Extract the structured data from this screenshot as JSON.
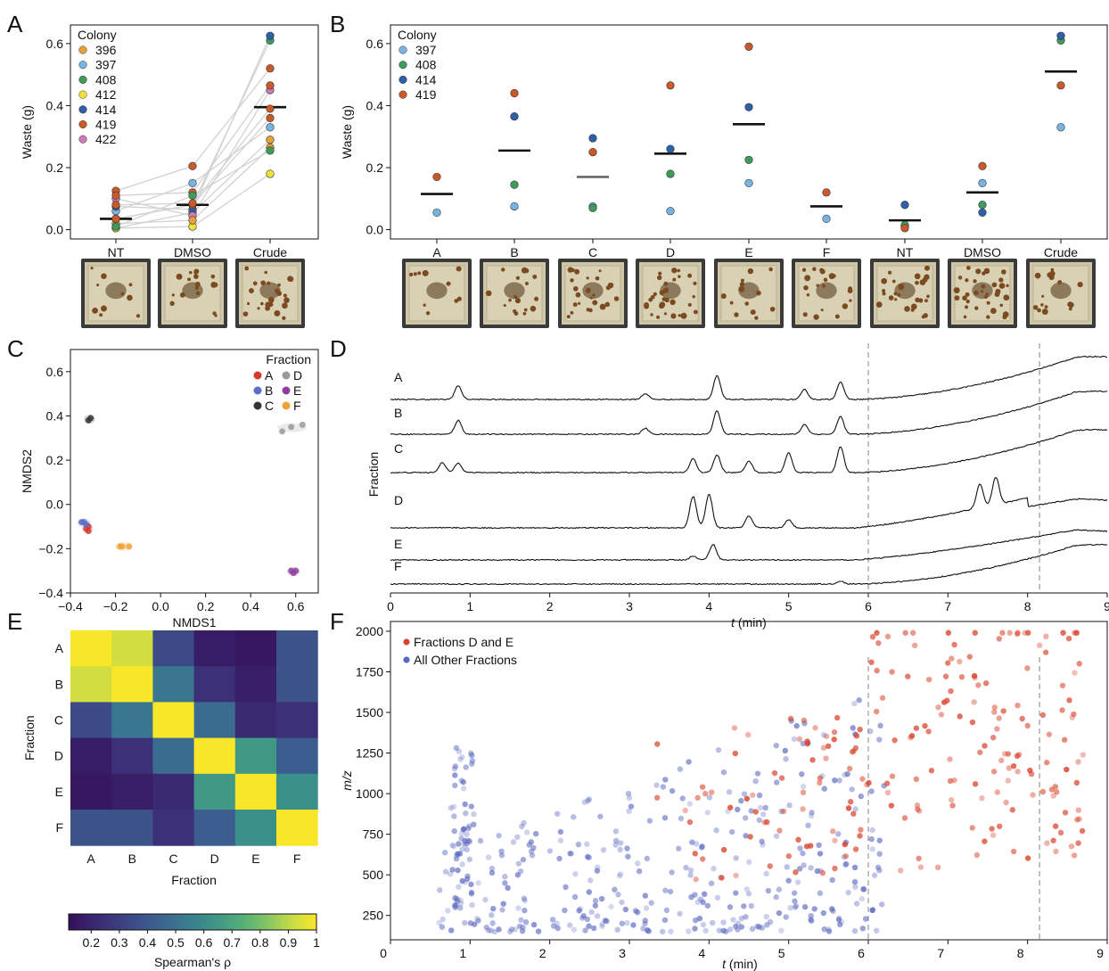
{
  "panels": {
    "A": "A",
    "B": "B",
    "C": "C",
    "D": "D",
    "E": "E",
    "F": "F"
  },
  "colony_colors": {
    "396": "#e8a13a",
    "397": "#78b4e2",
    "408": "#3f9b5b",
    "412": "#f0e03a",
    "414": "#2f5fa8",
    "419": "#c8592a",
    "422": "#cf7ab8"
  },
  "fraction_colors": {
    "A": "#d63a2f",
    "B": "#5a6fc4",
    "C": "#333333",
    "D": "#9a9a9a",
    "E": "#8e3f9e",
    "F": "#f0a23a"
  },
  "chart_data": [
    {
      "panel": "A",
      "type": "scatter",
      "ylabel": "Waste (g)",
      "ylim": [
        -0.03,
        0.66
      ],
      "yticks": [
        "0.0",
        "0.2",
        "0.4",
        "0.6"
      ],
      "categories": [
        "NT",
        "DMSO",
        "Crude"
      ],
      "legend_title": "Colony",
      "legend": [
        "396",
        "397",
        "408",
        "412",
        "414",
        "419",
        "422"
      ],
      "legend_placement": "top-left",
      "means": [
        0.035,
        0.08,
        0.395
      ],
      "points": [
        {
          "colony": "396",
          "values": [
            0.005,
            0.055,
            0.29
          ]
        },
        {
          "colony": "397",
          "values": [
            0.06,
            0.15,
            0.33
          ]
        },
        {
          "colony": "408",
          "values": [
            0.035,
            0.08,
            0.61
          ]
        },
        {
          "colony": "412",
          "values": [
            0.005,
            0.01,
            0.18
          ]
        },
        {
          "colony": "414",
          "values": [
            0.075,
            0.065,
            0.625
          ]
        },
        {
          "colony": "419",
          "values": [
            0.125,
            0.205,
            0.52
          ]
        },
        {
          "colony": "422",
          "values": [
            0.1,
            0.045,
            0.45
          ]
        },
        {
          "colony": "419",
          "values": [
            0.11,
            0.12,
            0.465
          ]
        },
        {
          "colony": "396",
          "values": [
            0.02,
            0.03,
            0.265
          ]
        },
        {
          "colony": "408",
          "values": [
            0.01,
            0.11,
            0.255
          ]
        },
        {
          "colony": "419",
          "values": [
            0.035,
            0.08,
            0.36
          ]
        },
        {
          "colony": "419",
          "values": [
            0.08,
            0.085,
            0.39
          ]
        }
      ]
    },
    {
      "panel": "B",
      "type": "scatter",
      "ylabel": "Waste (g)",
      "ylim": [
        -0.03,
        0.66
      ],
      "yticks": [
        "0.0",
        "0.2",
        "0.4",
        "0.6"
      ],
      "categories": [
        "A",
        "B",
        "C",
        "D",
        "E",
        "F",
        "NT",
        "DMSO",
        "Crude"
      ],
      "legend_title": "Colony",
      "legend": [
        "397",
        "408",
        "414",
        "419"
      ],
      "legend_placement": "top-left",
      "means": [
        0.115,
        0.255,
        0.17,
        0.245,
        0.34,
        0.075,
        0.03,
        0.12,
        0.51
      ],
      "points": [
        {
          "colony": "397",
          "values": [
            0.055,
            0.075,
            0.075,
            0.06,
            0.15,
            0.035,
            0.01,
            0.15,
            0.33
          ]
        },
        {
          "colony": "408",
          "values": [
            null,
            0.145,
            0.07,
            0.18,
            0.225,
            null,
            0.015,
            0.08,
            0.61
          ]
        },
        {
          "colony": "414",
          "values": [
            null,
            0.365,
            0.295,
            0.26,
            0.395,
            null,
            0.08,
            0.055,
            0.625
          ]
        },
        {
          "colony": "419",
          "values": [
            0.17,
            0.44,
            0.25,
            0.465,
            0.59,
            0.12,
            0.005,
            0.205,
            0.465
          ]
        }
      ]
    },
    {
      "panel": "C",
      "type": "scatter",
      "xlabel": "NMDS1",
      "ylabel": "NMDS2",
      "xlim": [
        -0.4,
        0.7
      ],
      "ylim": [
        -0.4,
        0.7
      ],
      "xticks": [
        "−0.4",
        "−0.2",
        "0.0",
        "0.2",
        "0.4",
        "0.6"
      ],
      "yticks": [
        "−0.4",
        "−0.2",
        "0.0",
        "0.2",
        "0.4",
        "0.6"
      ],
      "legend_title": "Fraction",
      "legend": [
        "A",
        "B",
        "C",
        "D",
        "E",
        "F"
      ],
      "legend_placement": "top-right",
      "series": [
        {
          "name": "A",
          "x": [
            -0.32,
            -0.33,
            -0.32
          ],
          "y": [
            -0.1,
            -0.11,
            -0.12
          ]
        },
        {
          "name": "B",
          "x": [
            -0.35,
            -0.34,
            -0.33
          ],
          "y": [
            -0.08,
            -0.08,
            -0.09
          ]
        },
        {
          "name": "C",
          "x": [
            -0.31,
            -0.32
          ],
          "y": [
            0.39,
            0.38
          ]
        },
        {
          "name": "D",
          "x": [
            0.54,
            0.58,
            0.63
          ],
          "y": [
            0.33,
            0.35,
            0.36
          ]
        },
        {
          "name": "E",
          "x": [
            0.58,
            0.59,
            0.6
          ],
          "y": [
            -0.3,
            -0.31,
            -0.3
          ]
        },
        {
          "name": "F",
          "x": [
            -0.18,
            -0.17,
            -0.14
          ],
          "y": [
            -0.19,
            -0.19,
            -0.19
          ]
        }
      ]
    },
    {
      "panel": "D",
      "type": "line",
      "xlabel": "t (min)",
      "ylabel": "Fraction",
      "xlim": [
        0,
        9
      ],
      "xticks": [
        "0",
        "1",
        "2",
        "3",
        "4",
        "5",
        "6",
        "7",
        "8",
        "9"
      ],
      "vlines": [
        6,
        8.15
      ],
      "trace_labels": [
        "A",
        "B",
        "C",
        "D",
        "E",
        "F"
      ],
      "peaks": {
        "A": [
          [
            0.85,
            0.7
          ],
          [
            3.2,
            0.3
          ],
          [
            4.1,
            1.2
          ],
          [
            5.2,
            0.5
          ],
          [
            5.65,
            0.9
          ]
        ],
        "B": [
          [
            0.85,
            0.7
          ],
          [
            3.2,
            0.3
          ],
          [
            4.1,
            1.2
          ],
          [
            5.2,
            0.5
          ],
          [
            5.65,
            0.9
          ]
        ],
        "C": [
          [
            0.65,
            0.5
          ],
          [
            0.85,
            0.5
          ],
          [
            3.8,
            0.7
          ],
          [
            4.1,
            0.9
          ],
          [
            4.5,
            0.6
          ],
          [
            5.0,
            1.0
          ],
          [
            5.65,
            1.3
          ]
        ],
        "D": [
          [
            3.8,
            1.6
          ],
          [
            4.0,
            1.7
          ],
          [
            4.5,
            0.6
          ],
          [
            5.0,
            0.4
          ],
          [
            7.4,
            1.2
          ],
          [
            7.6,
            1.4
          ]
        ],
        "E": [
          [
            3.8,
            0.2
          ],
          [
            4.05,
            0.8
          ]
        ],
        "F": [
          [
            5.65,
            0.15
          ]
        ]
      }
    },
    {
      "panel": "E",
      "type": "heatmap",
      "xlabel": "Fraction",
      "ylabel": "Fraction",
      "categories": [
        "A",
        "B",
        "C",
        "D",
        "E",
        "F"
      ],
      "colorbar_label": "Spearman's ρ",
      "colorbar_ticks": [
        "0.2",
        "0.3",
        "0.4",
        "0.5",
        "0.6",
        "0.7",
        "0.8",
        "0.9",
        "1"
      ],
      "vmin": 0.12,
      "vmax": 1.0,
      "matrix": [
        [
          1.0,
          0.93,
          0.35,
          0.17,
          0.15,
          0.38
        ],
        [
          0.93,
          1.0,
          0.52,
          0.25,
          0.18,
          0.38
        ],
        [
          0.35,
          0.52,
          1.0,
          0.48,
          0.22,
          0.25
        ],
        [
          0.17,
          0.25,
          0.48,
          1.0,
          0.65,
          0.42
        ],
        [
          0.15,
          0.18,
          0.22,
          0.65,
          1.0,
          0.62
        ],
        [
          0.38,
          0.38,
          0.25,
          0.42,
          0.62,
          1.0
        ]
      ]
    },
    {
      "panel": "F",
      "type": "scatter",
      "xlabel": "t (min)",
      "ylabel": "m/z",
      "xlim": [
        0,
        9
      ],
      "ylim": [
        100,
        2060
      ],
      "xticks": [
        "0",
        "1",
        "2",
        "3",
        "4",
        "5",
        "6",
        "7",
        "8",
        "9"
      ],
      "yticks": [
        "250",
        "500",
        "750",
        "1000",
        "1250",
        "1500",
        "1750",
        "2000"
      ],
      "vlines": [
        6,
        8.15
      ],
      "legend": [
        "Fractions D and E",
        "All Other Fractions"
      ],
      "legend_placement": "top-left",
      "series_colors": [
        "#d9462f",
        "#5b68c0"
      ]
    }
  ]
}
